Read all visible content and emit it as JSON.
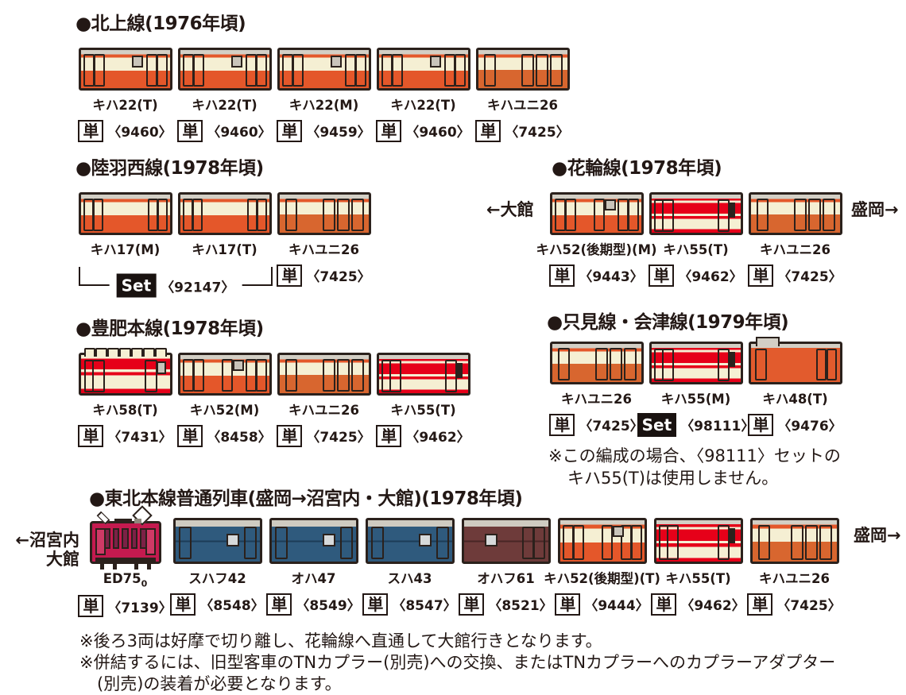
{
  "colors": {
    "text": "#231815",
    "outline": "#2b211c",
    "cream": "#f5efd3",
    "vermillion_orange": "#e4572a",
    "deep_orange": "#d8662f",
    "express_red": "#e60019",
    "ed75_crimson": "#c41a4f",
    "coach_blue": "#2f5a7d",
    "coach_brown": "#6e3b3a",
    "roof_gray": "#d3cfc5"
  },
  "sections": {
    "kitakami": {
      "title": "●北上線(1976年頃)",
      "cars": [
        {
          "name": "キハ22(T)",
          "badge": "単",
          "product": "〈9460〉",
          "livery": "kiha22"
        },
        {
          "name": "キハ22(T)",
          "badge": "単",
          "product": "〈9460〉",
          "livery": "kiha22"
        },
        {
          "name": "キハ22(M)",
          "badge": "単",
          "product": "〈9459〉",
          "livery": "kiha22"
        },
        {
          "name": "キハ22(T)",
          "badge": "単",
          "product": "〈9460〉",
          "livery": "kiha22"
        },
        {
          "name": "キハユニ26",
          "badge": "単",
          "product": "〈7425〉",
          "livery": "kihayuni26"
        }
      ]
    },
    "rikuu": {
      "title": "●陸羽西線(1978年頃)",
      "cars": [
        {
          "name": "キハ17(M)",
          "livery": "kiha17"
        },
        {
          "name": "キハ17(T)",
          "livery": "kiha17"
        },
        {
          "name": "キハユニ26",
          "badge": "単",
          "product": "〈7425〉",
          "livery": "kihayuni26"
        }
      ],
      "set_bracket": {
        "badge_label": "Set",
        "product": "〈92147〉"
      }
    },
    "hanawa": {
      "title": "●花輪線(1978年頃)",
      "left_label": "←大館",
      "right_label": "盛岡→",
      "cars": [
        {
          "name": "キハ52(後期型)(M)",
          "badge": "単",
          "product": "〈9443〉",
          "livery": "kiha52"
        },
        {
          "name": "キハ55(T)",
          "badge": "単",
          "product": "〈9462〉",
          "livery": "kiha55"
        },
        {
          "name": "キハユニ26",
          "badge": "単",
          "product": "〈7425〉",
          "livery": "kihayuni26"
        }
      ]
    },
    "hohi": {
      "title": "●豊肥本線(1978年頃)",
      "cars": [
        {
          "name": "キハ58(T)",
          "badge": "単",
          "product": "〈7431〉",
          "livery": "kiha58"
        },
        {
          "name": "キハ52(M)",
          "badge": "単",
          "product": "〈8458〉",
          "livery": "kiha52"
        },
        {
          "name": "キハユニ26",
          "badge": "単",
          "product": "〈7425〉",
          "livery": "kihayuni26"
        },
        {
          "name": "キハ55(T)",
          "badge": "単",
          "product": "〈9462〉",
          "livery": "kiha55"
        }
      ]
    },
    "tadami": {
      "title": "●只見線・会津線(1979年頃)",
      "cars": [
        {
          "name": "キハユニ26",
          "badge": "単",
          "product": "〈7425〉",
          "livery": "kihayuni26"
        },
        {
          "name": "キハ55(M)",
          "badge": "Set",
          "product": "〈98111〉",
          "livery": "kiha55"
        },
        {
          "name": "キハ48(T)",
          "badge": "単",
          "product": "〈9476〉",
          "livery": "kiha48"
        }
      ],
      "note_lines": [
        "※この編成の場合、〈98111〉セットの",
        "キハ55(T)は使用しません。"
      ]
    },
    "tohoku": {
      "title": "●東北本線普通列車(盛岡→沼宮内・大館)(1978年頃)",
      "left_label_lines": [
        "←沼宮内",
        "大館"
      ],
      "right_label": "盛岡→",
      "cars": [
        {
          "name": "ED75",
          "name_sub": "0",
          "badge": "単",
          "product": "〈7139〉",
          "livery": "ed75"
        },
        {
          "name": "スハフ42",
          "badge": "単",
          "product": "〈8548〉",
          "livery": "coach_blue"
        },
        {
          "name": "オハ47",
          "badge": "単",
          "product": "〈8549〉",
          "livery": "coach_blue"
        },
        {
          "name": "スハ43",
          "badge": "単",
          "product": "〈8547〉",
          "livery": "coach_blue"
        },
        {
          "name": "オハフ61",
          "badge": "単",
          "product": "〈8521〉",
          "livery": "coach_brown"
        },
        {
          "name": "キハ52(後期型)(T)",
          "badge": "単",
          "product": "〈9444〉",
          "livery": "kiha52"
        },
        {
          "name": "キハ55(T)",
          "badge": "単",
          "product": "〈9462〉",
          "livery": "kiha55"
        },
        {
          "name": "キハユニ26",
          "badge": "単",
          "product": "〈7425〉",
          "livery": "kihayuni26"
        }
      ]
    }
  },
  "footnotes": [
    "※後ろ3両は好摩で切り離し、花輪線へ直通して大館行きとなります。",
    "※併結するには、旧型客車のTNカプラー(別売)への交換、またはTNカプラーへのカプラーアダプター",
    "(別売)の装着が必要となります。"
  ]
}
